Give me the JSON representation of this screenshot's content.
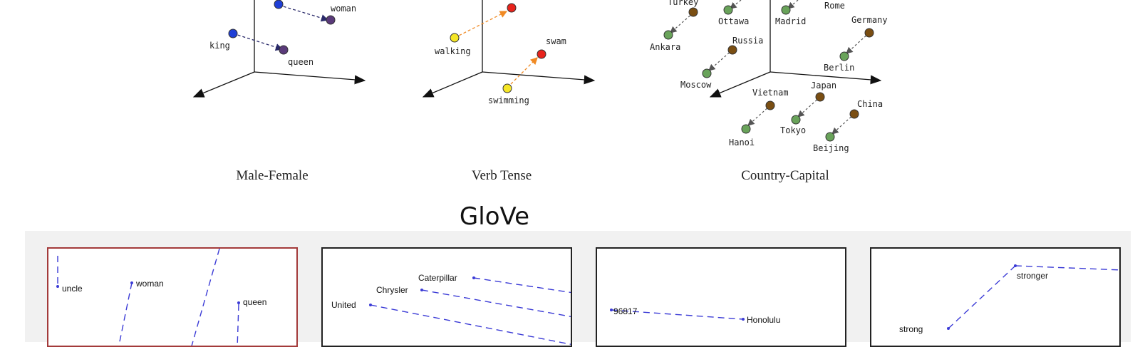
{
  "word2vec": {
    "panels": [
      {
        "caption": "Male-Female",
        "points": [
          {
            "label": "woman",
            "color": "#5a3a7a"
          },
          {
            "label": "king",
            "color": "#1f3fd6"
          },
          {
            "label": "queen",
            "color": "#5a3a7a"
          }
        ]
      },
      {
        "caption": "Verb Tense",
        "points": [
          {
            "label": "walking",
            "color": "#f5e626"
          },
          {
            "label": "swam",
            "color": "#e8231c"
          },
          {
            "label": "swimming",
            "color": "#f5e626"
          }
        ]
      },
      {
        "caption": "Country-Capital",
        "countries": [
          "Turkey",
          "Russia",
          "Germany",
          "Vietnam",
          "Japan",
          "China",
          "Rome"
        ],
        "capitals": [
          "Ottawa",
          "Madrid",
          "Ankara",
          "Moscow",
          "Berlin",
          "Hanoi",
          "Tokyo",
          "Beijing"
        ],
        "country_color": "#7a4e12",
        "capital_color": "#69a35a"
      }
    ]
  },
  "glove": {
    "title": "GloVe",
    "panels": [
      {
        "labels": [
          "uncle",
          "woman",
          "queen"
        ],
        "border_color": "#a33a3a"
      },
      {
        "labels": [
          "Caterpillar",
          "Chrysler",
          "United"
        ],
        "border_color": "#222222"
      },
      {
        "labels": [
          "96817",
          "Honolulu"
        ],
        "border_color": "#222222"
      },
      {
        "labels": [
          "stronger",
          "strong"
        ],
        "border_color": "#222222"
      }
    ],
    "line_color": "#3b3bd6"
  }
}
